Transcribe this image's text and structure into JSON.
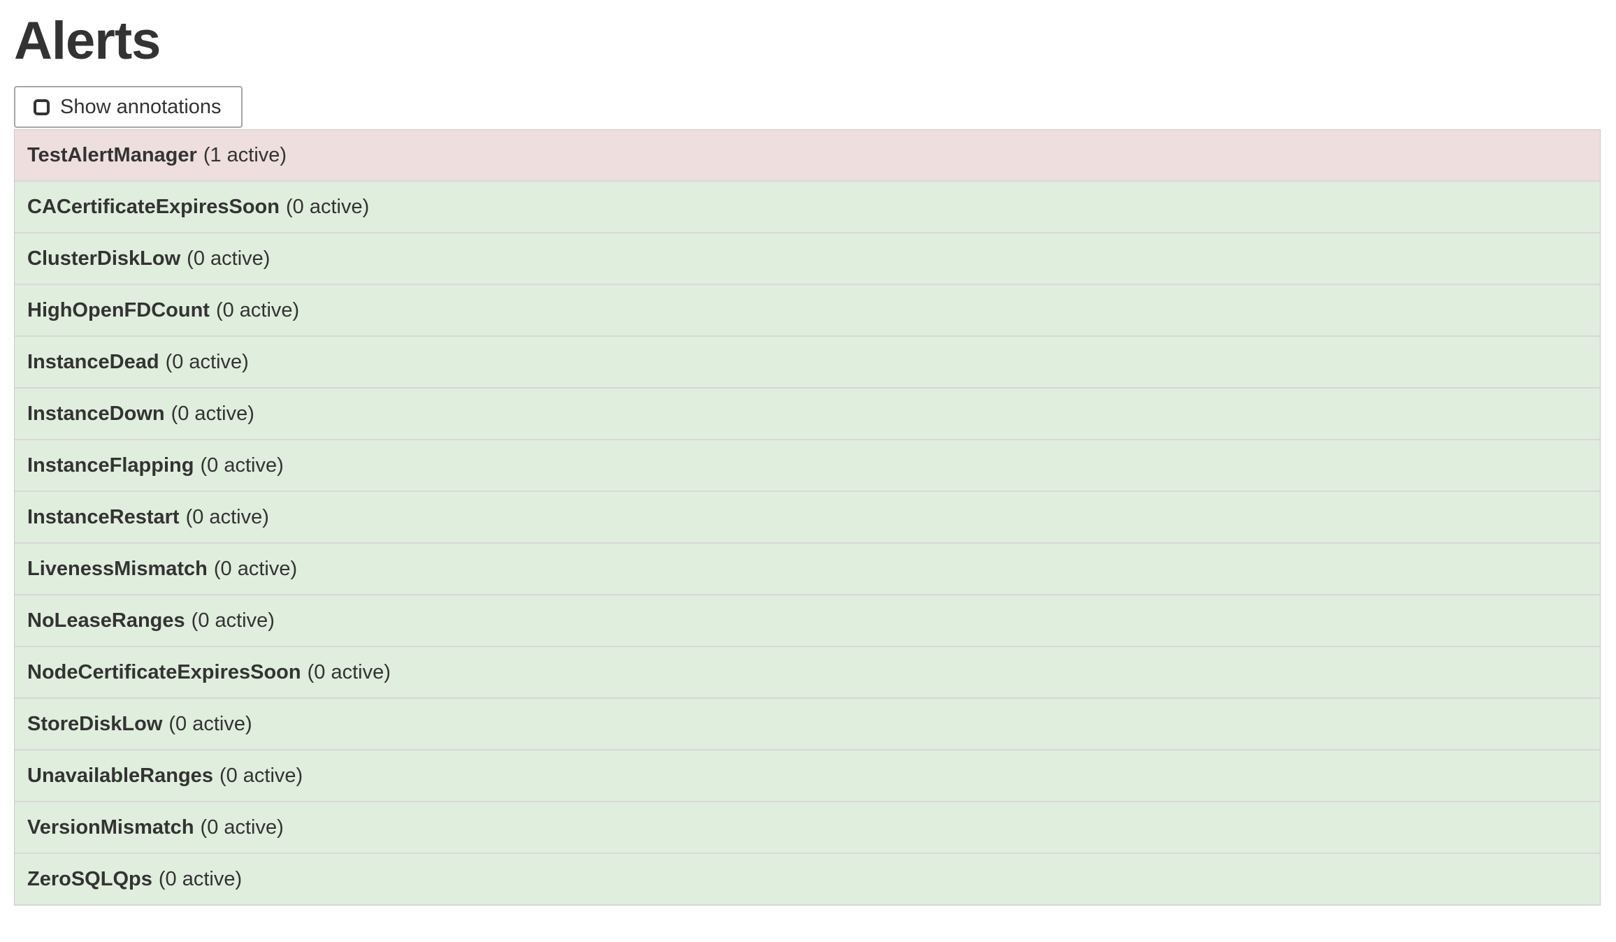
{
  "page_title": "Alerts",
  "toolbar": {
    "show_annotations": {
      "label": "Show annotations",
      "checked": false
    }
  },
  "alerts": [
    {
      "name": "TestAlertManager",
      "count_label": "(1 active)",
      "state": "firing"
    },
    {
      "name": "CACertificateExpiresSoon",
      "count_label": "(0 active)",
      "state": "inactive"
    },
    {
      "name": "ClusterDiskLow",
      "count_label": "(0 active)",
      "state": "inactive"
    },
    {
      "name": "HighOpenFDCount",
      "count_label": "(0 active)",
      "state": "inactive"
    },
    {
      "name": "InstanceDead",
      "count_label": "(0 active)",
      "state": "inactive"
    },
    {
      "name": "InstanceDown",
      "count_label": "(0 active)",
      "state": "inactive"
    },
    {
      "name": "InstanceFlapping",
      "count_label": "(0 active)",
      "state": "inactive"
    },
    {
      "name": "InstanceRestart",
      "count_label": "(0 active)",
      "state": "inactive"
    },
    {
      "name": "LivenessMismatch",
      "count_label": "(0 active)",
      "state": "inactive"
    },
    {
      "name": "NoLeaseRanges",
      "count_label": "(0 active)",
      "state": "inactive"
    },
    {
      "name": "NodeCertificateExpiresSoon",
      "count_label": "(0 active)",
      "state": "inactive"
    },
    {
      "name": "StoreDiskLow",
      "count_label": "(0 active)",
      "state": "inactive"
    },
    {
      "name": "UnavailableRanges",
      "count_label": "(0 active)",
      "state": "inactive"
    },
    {
      "name": "VersionMismatch",
      "count_label": "(0 active)",
      "state": "inactive"
    },
    {
      "name": "ZeroSQLQps",
      "count_label": "(0 active)",
      "state": "inactive"
    }
  ],
  "colors": {
    "firing_bg": "#eedede",
    "inactive_bg": "#e0eedd",
    "row_divider": "#d8d8d8",
    "list_border": "#c9c9c9",
    "button_border": "#a6a6a6",
    "text": "#333333"
  }
}
